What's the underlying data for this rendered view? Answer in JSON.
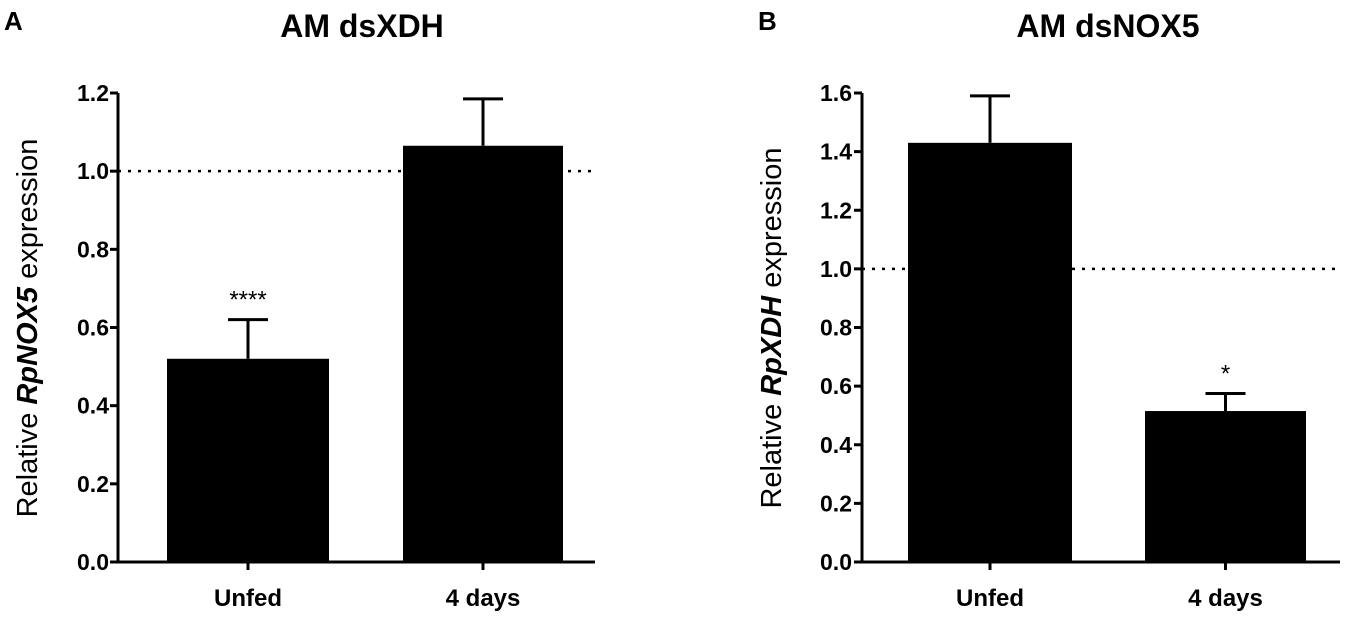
{
  "chart_data": [
    {
      "type": "bar",
      "panel": "A",
      "title": "AM dsXDH",
      "ylabel_prefix": "Relative ",
      "ylabel_gene": "RpNOX5",
      "ylabel_suffix": " expression",
      "categories": [
        "Unfed",
        "4 days"
      ],
      "values": [
        0.52,
        1.065
      ],
      "errors": [
        0.1,
        0.12
      ],
      "significance": [
        "****",
        ""
      ],
      "reference_line": 1.0,
      "ylim": [
        0,
        1.2
      ],
      "yticks": [
        "0.0",
        "0.2",
        "0.4",
        "0.6",
        "0.8",
        "1.0",
        "1.2"
      ],
      "color": "#000000"
    },
    {
      "type": "bar",
      "panel": "B",
      "title": "AM dsNOX5",
      "ylabel_prefix": "Relative ",
      "ylabel_gene": "RpXDH",
      "ylabel_suffix": " expression",
      "categories": [
        "Unfed",
        "4 days"
      ],
      "values": [
        1.43,
        0.515
      ],
      "errors": [
        0.16,
        0.06
      ],
      "significance": [
        "",
        "*"
      ],
      "reference_line": 1.0,
      "ylim": [
        0,
        1.6
      ],
      "yticks": [
        "0.0",
        "0.2",
        "0.4",
        "0.6",
        "0.8",
        "1.0",
        "1.2",
        "1.4",
        "1.6"
      ],
      "color": "#000000"
    }
  ]
}
